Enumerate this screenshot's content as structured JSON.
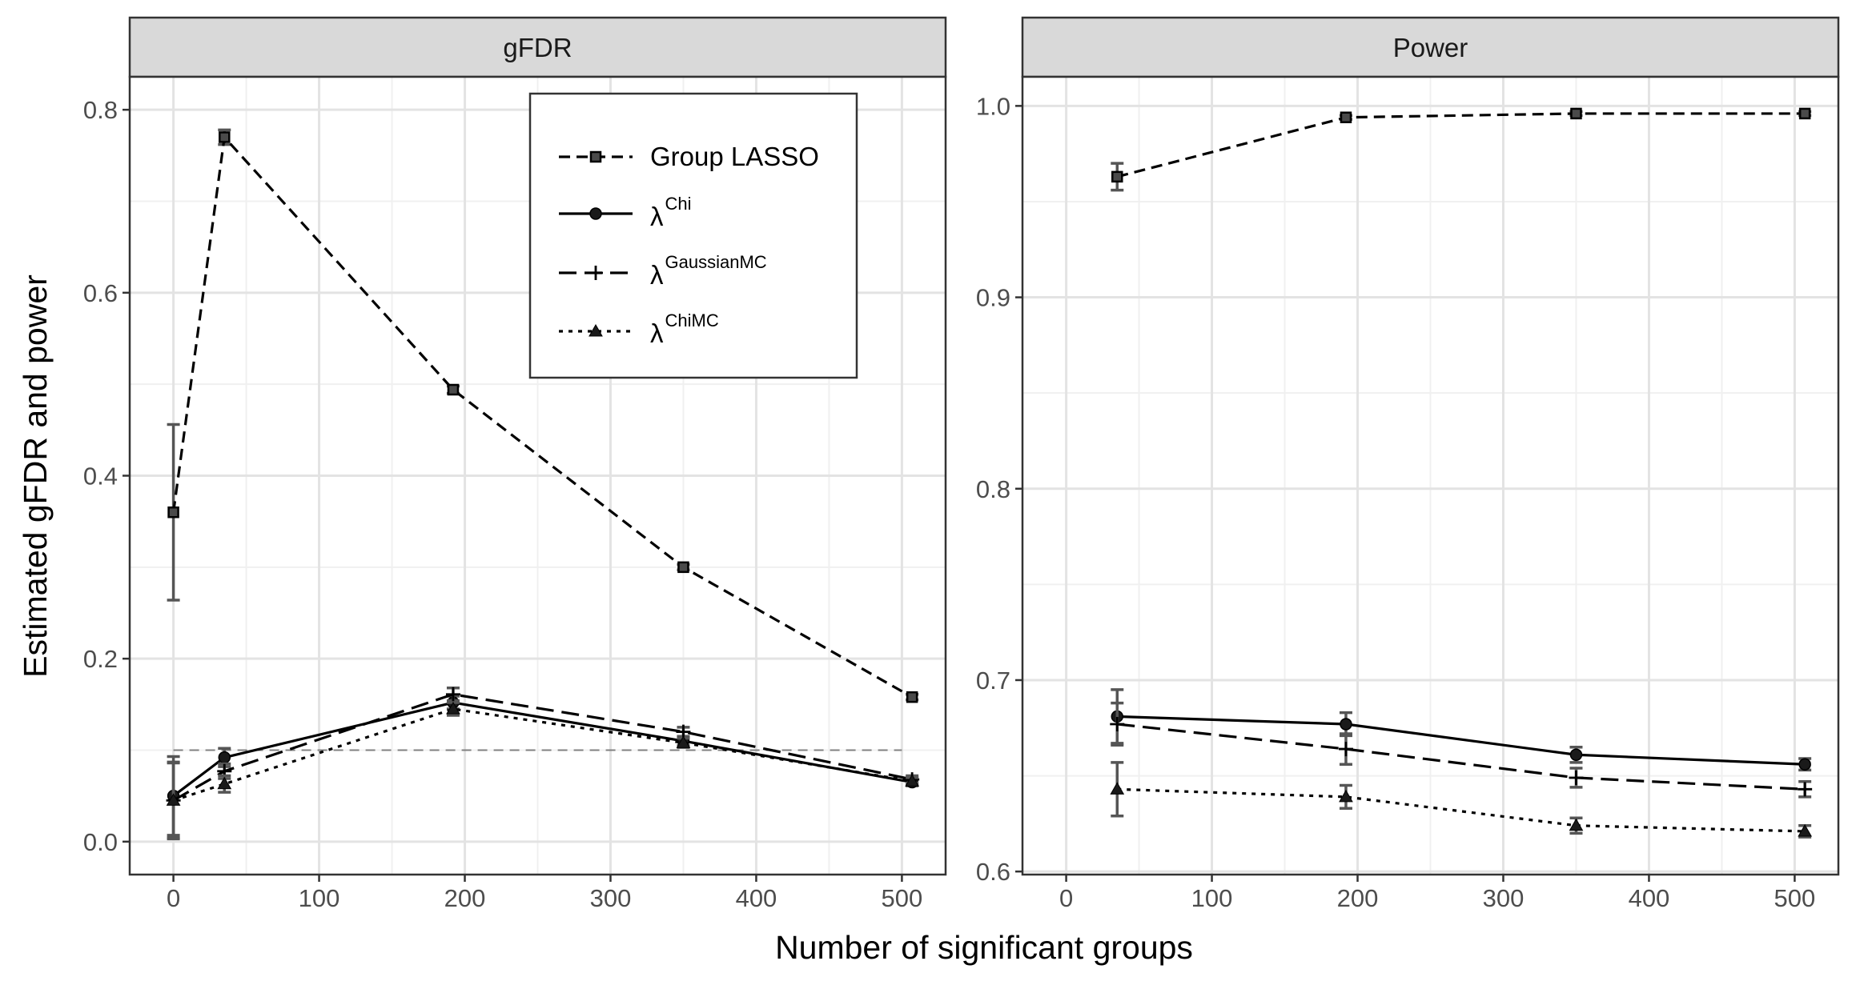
{
  "chart_data": {
    "type": "line",
    "xlabel": "Number of significant groups",
    "ylabel": "Estimated gFDR and power",
    "legend": {
      "placement": "top-right of left panel",
      "entries": [
        {
          "series": "Group LASSO",
          "label": "Group LASSO",
          "sup": "",
          "linestyle": "dashed",
          "marker": "square"
        },
        {
          "series": "lambda_Chi",
          "label": "λ",
          "sup": "Chi",
          "linestyle": "solid",
          "marker": "circle"
        },
        {
          "series": "lambda_GaussianMC",
          "label": "λ",
          "sup": "GaussianMC",
          "linestyle": "longdash",
          "marker": "plus"
        },
        {
          "series": "lambda_ChiMC",
          "label": "λ",
          "sup": "ChiMC",
          "linestyle": "dotted",
          "marker": "triangle"
        }
      ]
    },
    "panels": [
      {
        "strip": "gFDR",
        "xlim": [
          -30,
          530
        ],
        "ylim": [
          -0.036,
          0.836
        ],
        "xticks": [
          0,
          100,
          200,
          300,
          400,
          500
        ],
        "yticks": [
          0.0,
          0.2,
          0.4,
          0.6,
          0.8
        ],
        "ytick_labels": [
          "0.0",
          "0.2",
          "0.4",
          "0.6",
          "0.8"
        ],
        "grid": true,
        "reference_line": {
          "y": 0.1,
          "style": "dashed",
          "color": "#808080"
        },
        "series": [
          {
            "name": "Group LASSO",
            "x": [
              0,
              35,
              192,
              350,
              507
            ],
            "y": [
              0.36,
              0.77,
              0.494,
              0.3,
              0.158
            ],
            "err": [
              [
                0.264,
                0.456
              ],
              [
                0.762,
                0.778
              ],
              [
                0.49,
                0.498
              ],
              [
                0.297,
                0.303
              ],
              [
                0.155,
                0.161
              ]
            ]
          },
          {
            "name": "lambda_Chi",
            "x": [
              0,
              35,
              192,
              350,
              507
            ],
            "y": [
              0.05,
              0.092,
              0.152,
              0.11,
              0.065
            ],
            "err": [
              [
                0.007,
                0.093
              ],
              [
                0.082,
                0.102
              ],
              [
                0.145,
                0.159
              ],
              [
                0.105,
                0.115
              ],
              [
                0.061,
                0.069
              ]
            ]
          },
          {
            "name": "lambda_GaussianMC",
            "x": [
              0,
              35,
              192,
              350,
              507
            ],
            "y": [
              0.045,
              0.077,
              0.161,
              0.12,
              0.068
            ],
            "err": [
              [
                0.003,
                0.087
              ],
              [
                0.069,
                0.085
              ],
              [
                0.154,
                0.168
              ],
              [
                0.115,
                0.125
              ],
              [
                0.064,
                0.072
              ]
            ]
          },
          {
            "name": "lambda_ChiMC",
            "x": [
              0,
              35,
              192,
              350,
              507
            ],
            "y": [
              0.045,
              0.063,
              0.145,
              0.108,
              0.066
            ],
            "err": [
              [
                0.004,
                0.086
              ],
              [
                0.054,
                0.072
              ],
              [
                0.138,
                0.152
              ],
              [
                0.103,
                0.113
              ],
              [
                0.062,
                0.07
              ]
            ]
          }
        ]
      },
      {
        "strip": "Power",
        "xlim": [
          -30,
          530
        ],
        "ylim": [
          0.5984,
          1.0152
        ],
        "xticks": [
          0,
          100,
          200,
          300,
          400,
          500
        ],
        "yticks": [
          0.6,
          0.7,
          0.8,
          0.9,
          1.0
        ],
        "ytick_labels": [
          "0.6",
          "0.7",
          "0.8",
          "0.9",
          "1.0"
        ],
        "grid": true,
        "series": [
          {
            "name": "Group LASSO",
            "x": [
              35,
              192,
              350,
              507
            ],
            "y": [
              0.963,
              0.994,
              0.996,
              0.996
            ],
            "err": [
              [
                0.956,
                0.97
              ],
              [
                0.993,
                0.995
              ],
              [
                0.995,
                0.997
              ],
              [
                0.995,
                0.997
              ]
            ]
          },
          {
            "name": "lambda_Chi",
            "x": [
              35,
              192,
              350,
              507
            ],
            "y": [
              0.681,
              0.677,
              0.661,
              0.656
            ],
            "err": [
              [
                0.667,
                0.695
              ],
              [
                0.671,
                0.683
              ],
              [
                0.657,
                0.665
              ],
              [
                0.653,
                0.659
              ]
            ]
          },
          {
            "name": "lambda_GaussianMC",
            "x": [
              35,
              192,
              350,
              507
            ],
            "y": [
              0.677,
              0.664,
              0.649,
              0.643
            ],
            "err": [
              [
                0.666,
                0.688
              ],
              [
                0.656,
                0.672
              ],
              [
                0.644,
                0.654
              ],
              [
                0.639,
                0.647
              ]
            ]
          },
          {
            "name": "lambda_ChiMC",
            "x": [
              35,
              192,
              350,
              507
            ],
            "y": [
              0.643,
              0.639,
              0.624,
              0.621
            ],
            "err": [
              [
                0.629,
                0.657
              ],
              [
                0.633,
                0.645
              ],
              [
                0.62,
                0.628
              ],
              [
                0.618,
                0.624
              ]
            ]
          }
        ]
      }
    ]
  }
}
